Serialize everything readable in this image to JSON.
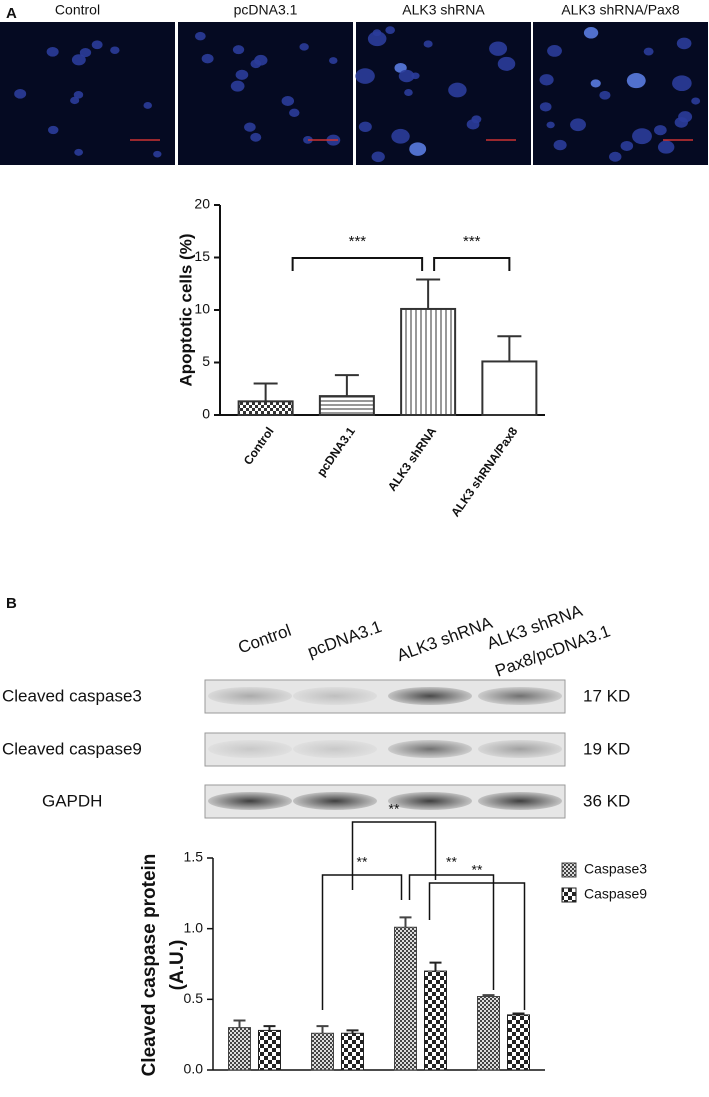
{
  "panels": {
    "a": "A",
    "b": "B"
  },
  "micrographs": [
    "Control",
    "pcDNA3.1",
    "ALK3 shRNA",
    "ALK3 shRNA/Pax8"
  ],
  "blot": {
    "lanes": [
      [
        "Control"
      ],
      [
        "pcDNA3.1"
      ],
      [
        "ALK3 shRNA"
      ],
      [
        "ALK3 shRNA",
        "Pax8/pcDNA3.1"
      ]
    ],
    "rows": [
      {
        "name": "Cleaved caspase3",
        "size": "17 KD"
      },
      {
        "name": "Cleaved caspase9",
        "size": "19 KD"
      },
      {
        "name": "GAPDH",
        "size": "36 KD"
      }
    ]
  },
  "chart_data": [
    {
      "type": "bar",
      "ylabel": "Apoptotic cells (%)",
      "categories": [
        "Control",
        "pcDNA3.1",
        "ALK3 shRNA",
        "ALK3 shRNA/Pax8"
      ],
      "values": [
        1.3,
        1.8,
        10.1,
        5.1
      ],
      "errors": [
        1.7,
        2.0,
        2.8,
        2.4
      ],
      "color": "#333333",
      "ylim": [
        0,
        20
      ],
      "yticks": [
        0,
        5,
        10,
        15,
        20
      ],
      "annotations": [
        "***",
        "***"
      ]
    },
    {
      "type": "grouped-bar",
      "ylabel": [
        "Cleaved caspase protein",
        "(A.U.)"
      ],
      "categories": [
        null,
        null,
        null,
        null
      ],
      "series": [
        {
          "name": "Caspase3",
          "color": "#444444",
          "values": [
            0.3,
            0.26,
            1.01,
            0.52
          ],
          "errors": [
            0.05,
            0.05,
            0.07,
            0.01
          ]
        },
        {
          "name": "Caspase9",
          "color": "#222222",
          "values": [
            0.28,
            0.26,
            0.7,
            0.39
          ],
          "errors": [
            0.03,
            0.02,
            0.06,
            0.01
          ]
        }
      ],
      "ylim": [
        0,
        1.5
      ],
      "yticks": [
        {
          "value": 0,
          "label": "0.0"
        },
        {
          "value": 0.5,
          "label": "0.5"
        },
        {
          "value": 1,
          "label": "1.0"
        },
        {
          "value": 1.5,
          "label": "1.5"
        }
      ],
      "legend": "upper right",
      "annotations": [
        "**",
        "**",
        "**",
        "**"
      ]
    }
  ]
}
